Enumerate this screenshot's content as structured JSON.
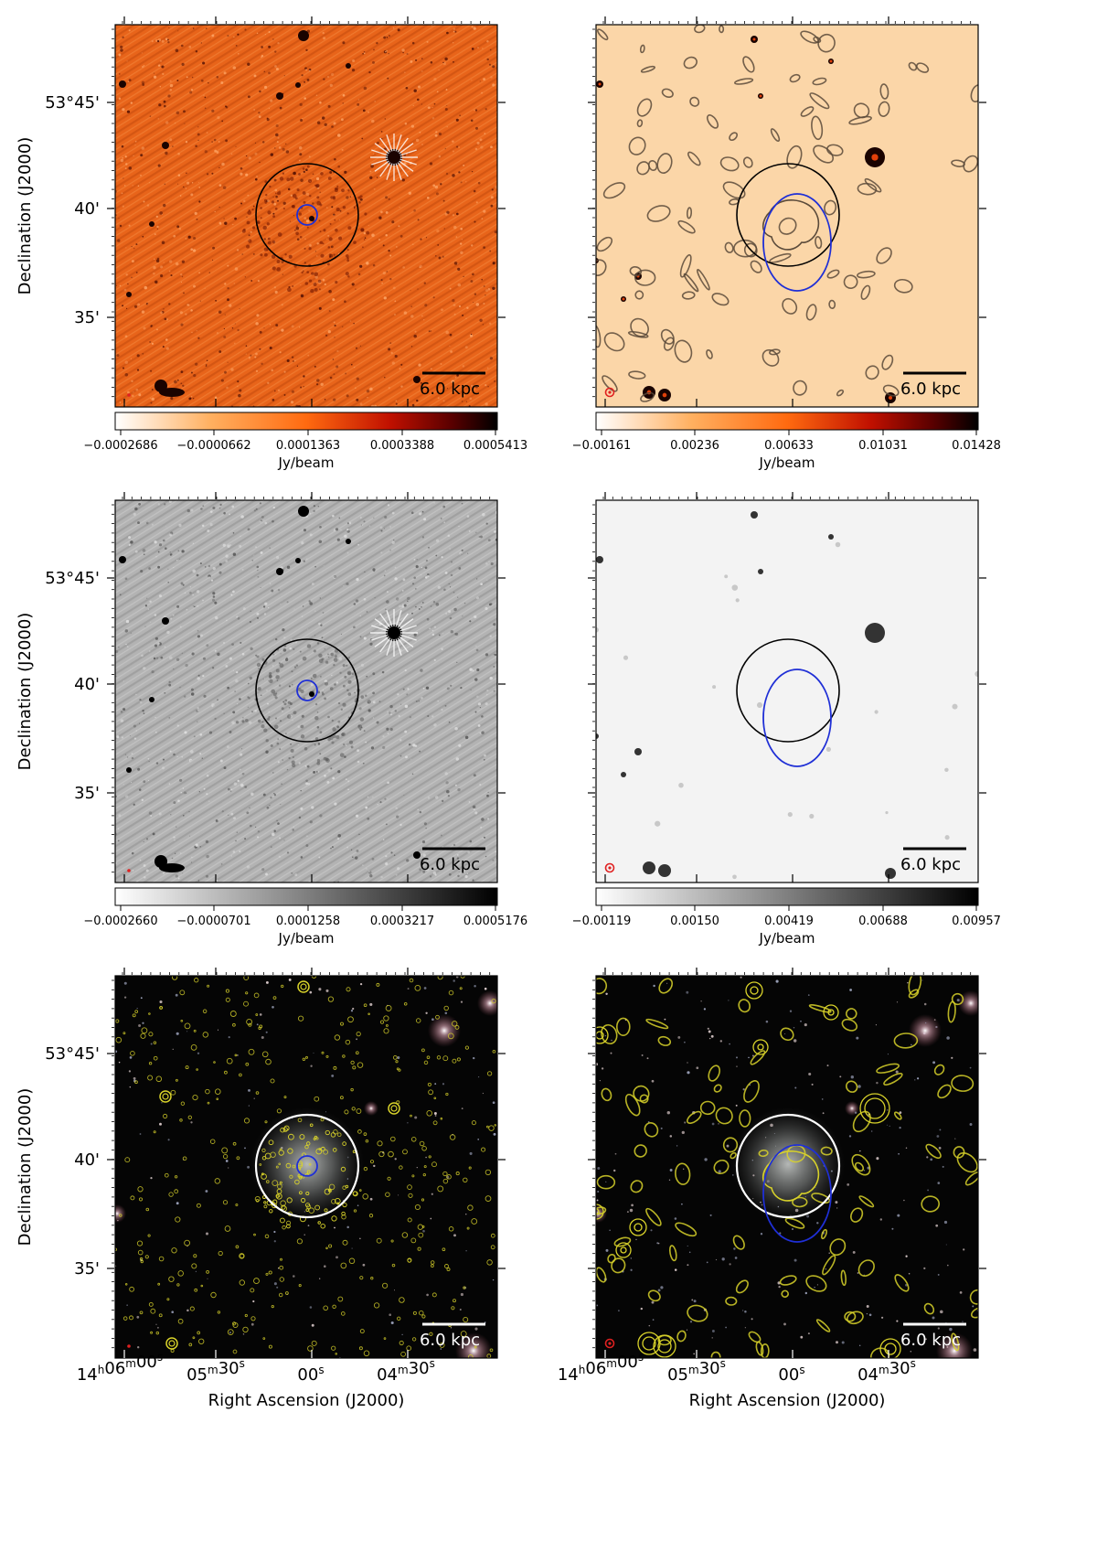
{
  "figure": {
    "declination_axis_label": "Declination (J2000)",
    "right_ascension_axis_label": "Right Ascension (J2000)",
    "dec_tick_labels": [
      "53°45'",
      "40'",
      "35'"
    ],
    "ra_tick_labels": [
      {
        "h": "14",
        "hs": "h",
        "m": "06",
        "ms": "m",
        "s": "00",
        "ss": "s"
      },
      {
        "h": "",
        "hs": "",
        "m": "05",
        "ms": "m",
        "s": "30",
        "ss": "s"
      },
      {
        "h": "",
        "hs": "",
        "m": "",
        "ms": "",
        "s": "00",
        "ss": "s"
      },
      {
        "h": "",
        "hs": "",
        "m": "04",
        "ms": "m",
        "s": "30",
        "ss": "s"
      }
    ],
    "scale_bar_label": "6.0 kpc",
    "colorbar_unit": "Jy/beam"
  },
  "panels": [
    {
      "id": "top-left",
      "style": "orange-highres",
      "colorbar": [
        "−0.0002686",
        "−0.0000662",
        "0.0001363",
        "0.0003388",
        "0.0005413"
      ]
    },
    {
      "id": "top-right",
      "style": "orange-lowres-contours",
      "colorbar": [
        "−0.00161",
        "0.00236",
        "0.00633",
        "0.01031",
        "0.01428"
      ]
    },
    {
      "id": "middle-left",
      "style": "gray-highres",
      "colorbar": [
        "−0.0002660",
        "−0.0000701",
        "0.0001258",
        "0.0003217",
        "0.0005176"
      ]
    },
    {
      "id": "middle-right",
      "style": "gray-lowres",
      "colorbar": [
        "−0.00119",
        "0.00150",
        "0.00419",
        "0.00688",
        "0.00957"
      ]
    },
    {
      "id": "bottom-left",
      "style": "optical-highres-contours",
      "colorbar": []
    },
    {
      "id": "bottom-right",
      "style": "optical-lowres-contours",
      "colorbar": []
    }
  ],
  "colors": {
    "outer_circle_dark": "#000000",
    "outer_circle_light": "#ffffff",
    "inner_marker": "#1f2fd6",
    "contour_dark": "#5a4a3a",
    "contour_yellow": "#d8d22a",
    "beam_marker": "#e02020"
  }
}
